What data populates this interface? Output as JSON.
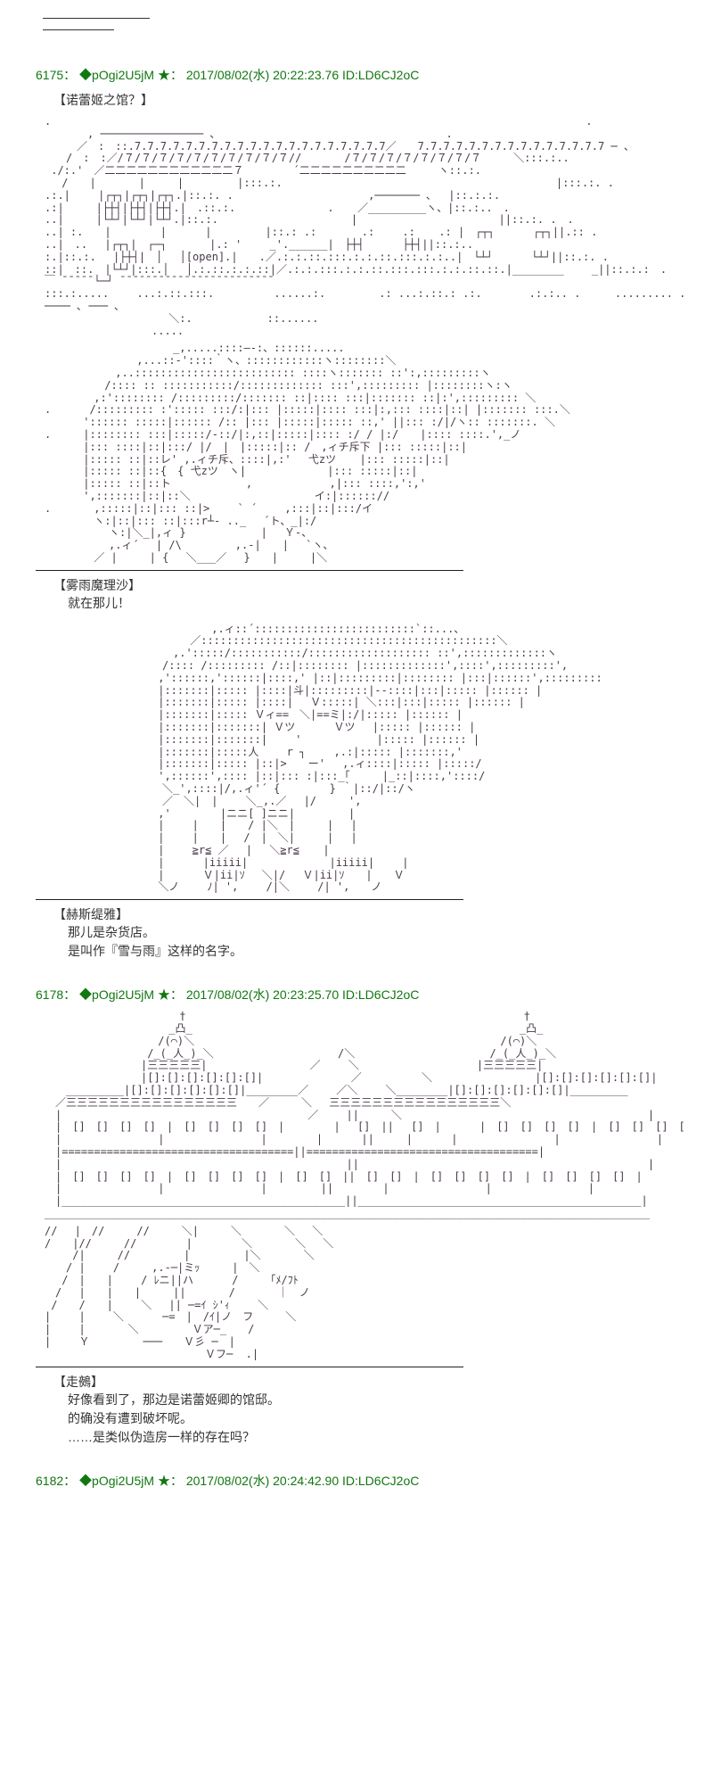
{
  "topbar": {},
  "posts": [
    {
      "num": "6175",
      "sep": "：",
      "trip": "◆pOgi2U5jM",
      "star": "★",
      "date": "2017/08/02(水) 20:22:23.76",
      "idlabel": "ID:LD6CJ2oC",
      "caption": "【诺蕾姬之馆？】",
      "aa_house": ".　　　　　　　　　　　　　　　　　　　　　　　　　　　　　　　　　　　　　　　　　　　　　　　　　　.\n　　　　, ──────────────── 、　　　　　　　　　　　　　　　　　　　　　 .\n　　　／　:　::.7.7.7.7.7.7.7.7.7.7.7.7.7.7.7.7.7.7.7.7／　　7.7.7.7.7.7.7.7.7.7.7.7.7.7.7 ─ 、\n　　/　:　:／/７/７/７/７/７/７/７/７/７/７//　　　　/７/７/７/７/７/７/７/７　　　＼:::.:..\n ./:.'　／二二二二二二二二二二二二７　　　　 ´二二二二二二二二二二　　　ヽ::.:.\n　 /　　|　　　　|　　　|　　　　　|:::.:.　　　　　　　　　　　　 　　　　　　　　　　　　　|:::.:. .\n.:.|　　 |┌┬┐|┌┬┐|┌┬┐.|::.:. .　　　　　　　　　 　　　,─────── ､　 |::.:.:.\n.:|　　　|├┼┤|├┼┤|├┼┤.|　.::.:.　　　　　　　　 . 　 ／_________ヽ、|::.:..　.\n..|　　　|└┴┘|└┴┘|└┴┘.|::.:. 　　　　　　　　 　 　 |　　　　　　　　　　 　　 ||::.:. .　.\n..| :.　　|　　　　 |　　　 |　　　　　|::.: .:　　 　 .:　　 .: 　 .: |　┌┬┐　　　 ┌┬┐||.:: .\n..|　..　 |┌┬┐|　┌─┐　　　　|.: '　　 _'.______|　├┼┤　　　 ├┼┤||::.:..\n:.|::.:.　 |├┼┤|　│　 │[open].|　　.／.:.:.::.:::.:.:.::.:::.:.:..|　└┴┘　　　 └┴┘||::.:. .\n::|　::.　|└┴┘|:::.│　 │.:.::.:.:.::|／.:.:.:::.:.:.::.:::.:::.:.:.::.::.|________　　 _||::.:.:　.\n￣ ̄ ̄ ̄ ̄ ̄ └─┘ ̄ ̄ ̄ ̄ ̄ ̄ ̄ ̄ ̄ ̄ ̄ ̄ ̄ ̄ ̄ ̄ ̄ ̄ ̄ ̄ ̄ ̄ ̄ ̄\n:::.:.....　　 ...:.::.:::.　　　　　 ......:.　　　　　.: ...:.::.: .:.　　    .:.:.. .　 　 ......... . .　......:.::.　...\n──── ､ ─── ､\n　　　　　　　　　　　 ＼:.　　　　　　　::......\n　　　　　　　　　　.....",
      "aa_marisa": "　　　　　　　　　　　　_,.....::::―-:、::::::.....\n　　　　　　　　 ,...::‐'::::｀ヽ、::::::::::::ヽ::::::::＼\n　　　　　　 ,..::::::::::::::::::::::::: ::::ヽ::::::: ::':,:::::::::ヽ\n　　　　　 /:::: :: :::::::::::/::::::::::::: :::',::::::::: |::::::::ヽ:ヽ\n　　　　 ,:':::::::: /:::::::::/::::::: ::|:::: :::|::::::: ::|:',::::::::: ＼\n.　　　 /::::::::: :'::::: :::/:|::: |:::::|:::: :::|:,::: ::::|::| |::::::: :::.＼\n　　　 ':::::: :::::|:::::: /:: |::: |:::::|::::: ::,' ||::: :/|/ヽ:: :::::::. ＼\n.　　　|:::::::: :::|:::::/-::/|:,::|:::::|:::: :/ / |:/　　|:::: ::::.',_ノ\n　 　　|::: ::::|::|:::/ |/　|　|:::::|:: /　,ィチ斥下 |::: :::::|::|\n　 　　|::::: ::|::レ' ,.ィチ斥、::::|,:'　 弋zツ 　 |::: :::::|::|\n　 　　|::::: ::|::{　{ 弋zツ　ヽ|　　　　　　　 |::: :::::|::|\n　 　　|::::: ::|::ト　　　　　　　,　　　　　 　 ,|::: ::::,':,'\n　 　　',:::::::|::|::＼　　　　　　　　　　　 イ:|:::::://\n.　　　　,:::::|::|::: ::|>　　 ` ´　　 ,:::|::|:::/イ\n　　　　 ヽ:|::|::: ::|:::r┴- .._　 ´ト、_|:/\n　　　　　　ヽ:|＼_|,ィ }　　　　　　　|　 Ｙ-、\n　　　　　　,.ィ´　 | /\\　　　　　,.-|　　|　 `ヽ、\n　　　　 ／ |　　　| { 　＼___／　 }　　|　　　|＼",
      "speaker1": "【雾雨魔理沙】",
      "line1": "就在那儿！",
      "aa_hestia": "　　　　　　　　　　　　　　　 ,.ィ::´:::::::::::::::::::::::::`::...、\n　　　　　　　　　　　　　 ／::::::::::::::::::::::::::::::::::::::::::::::＼\n　　　　　　　　　　　　,.':::::/:::::::::::/::::::::::::::::::: ::',:::::::::::::ヽ\n　　　　　　　　　　　/:::: /::::::::: /::|:::::::: |:::::::::::::',::::',:::::::::',\n　　　　　　　　　　 ,'::::::,'::::::|::::,' |::|:::::::::|:::::::: |:::|::::::',:::::::::\n　　　　　　　　　　 |:::::::|::::: |::::|斗|:::::::::|‐-::::|:::|::::: |:::::: |\n　　　　　　　　　　 |:::::::|::::: |::::|　 Ｖ:::::| ＼:::|:::|::::: |:::::: |\n　　　　　　　　　　 |:::::::|::::: Ｖィ==　＼|==ミ|:/|::::: |:::::: |\n　　　　　　　　　　 |:::::::|:::::::| Ｖツ　　　 Ｖツ　 |::::: |:::::: |\n　　　　　　　　　　 |:::::::|:::::::|　　 '　　　　　　　|::::: |:::::: |\n　　　　　　　　　　 |:::::::|:::::人　　 r ┐　　 ,.:|::::: |:::::::,'\n　　　　　　　　　　 |:::::::|::::: |::|>　　ー'　 ,.ィ::::|::::: |:::::/\n　　　　　　　　　　 ',::::::',:::: |::|::: :|:::_｢　　　|_::|::::,'::::/\n　　　　　　　　　　　＼_',::::|/,.ィ'´ {　　　　 } ｀|::/|::/ヽ\n　　　　　　　　　　　／　＼|　|　　 ＼_,.／　 |/　　　',\n　　　　　　　　　　 ,'　　　　 |ニニ[ ]ニニ|　　　　　|\n　　　　　　　　　　 |　　 |　　|　　/ |＼　|　　　|　 |\n　　　　　　　　　　 |　　 |　　|　 /　|　＼|　　　|　 |\n　　　　　　　　　　 |　　 ≧r≦ ／　 |　 ＼≧r≦　  |\n　　　　　　　　　　 |　　　 |iiiii|　　　　　　　 |iiiii|　　 |\n　　　　　　　　　　 |　　　 Ｖ|ii|ｿ　 ＼|/　 Ｖ|ii|ｿ　　|　　Ｖ\n　　　　　　　　　　 ＼ノ　　 ﾉ| ',　　 /|＼　　 /| ',　　ノ",
      "speaker2": "【赫斯缇雅】",
      "line2a": "那儿是杂货店。",
      "line2b": "是叫作『雪与雨』这样的名字。"
    },
    {
      "num": "6178",
      "sep": "：",
      "trip": "◆pOgi2U5jM",
      "star": "★",
      "date": "2017/08/02(水) 20:23:25.70",
      "idlabel": "ID:LD6CJ2oC",
      "aa_mansion": "　　　　　　　　　　　　 †　　　　　　　　　　　　　　　　　　　　　　　　　　　　　　　 †\n　　　　　　　　　　　 _凸_　　　　　　　　　　　　　　　　　　　　　　　　　　　　　　 _凸_\n　　　　　　　　　　 /(⌒)＼　　　　　　　　　　　　　　　　　　　　　　　　　　　　 /(⌒)＼\n　　　　　　　　　 /_(_人_)_＼　　　　　　　　　　 　/＼　　　　　　　　　　　　 /_(_人_)_＼\n　　　　　　　　　|三三三三三|　　　　　　　　　 ／　 　＼　　　　　　　　　　　|三三三三三|\n　　　　　　　　　|[]:[]:[]:[]:[]:[]|　 　　　　　　 ／　　　　　 ＼　　　　　　　　　 |[]:[]:[]:[]:[]:[]|\n　　_________|[]:[]:[]:[]:[]:[]|________／　　 ／＼　　 ＼________|[]:[]:[]:[]:[]:[]|_________\n　／三三三三三三三三三三三三三三三三　　／　　　＼　 三三三三三三三三三三三三三三三三＼\n　|　　　　　　　　　　　　　　　　　　　　　　　／　　 ||　　　＼　　　　　　　　　　　　　　　　　　　　　　　|\n　|　[]　[]　[]　[]　|　[]　[]　[]　[]　|　　　　 |　 []　||　 []　|　　　 |　[]　[]　[]　[]　|　[]　[]　[]　[]　|\n　|　　　　　　　　　|　　　　　　　　　|　　　　 |　　　 ||　　　|　　　 |　　　　　　　　　|　　　　　　　　　|\n　|====================================||====================================|\n　|　　　　　　　　　　　　　　　　　　　　　　　　　　 ||　　　　　　　　　　　　　　　　　　　　　　　　　　　|\n　|　[]　[]　[]　[]　|　[]　[]　[]　[]　|　[]　[]　||　[]　[]　|　[]　[]　[]　[]　|　[]　[]　[]　[]　|\n　|　　　　　　　　　|　　　　　　　　　|　　　　　||　　　　 |　　　　　　　　　|　　　　　　　　　|\n　|____________________________________________||____________________________________________|\n______________________________________________________________________________________________",
      "aa_monster": "// 　|　//　　　//　　　＼|　　　＼　　　　＼　 ＼\n/　　|//　　　//　　　　 |　　　　 ＼　　　　＼　 ＼\n　　 /|　　　//　　　　　|　　　　　|＼　　　　＼\n　　/ |　　 /　　　,.-─|ミｯ　　　|　＼\n　 /　|　　|　　 / ﾚニ||ハ　　　 /　　　｢ﾒ/ﾌﾄ\n　/　 |　　|　　|　　　||　　　　/　　　　｜　ノ\n /　　/　　|　　 ＼　 || ─=ｲ ｼ'ｨ　　 ＼\n|　　 |　　 ＼　　　 ─=　|　/ｲ|ノ　フ　　　＼\n|　　 |　　　　＼　　　　　Ｖア─_　　/\n|　　 Ｙ　　　　　───　　Ｖ彡 ─　|\n　　　　　　　　　　　　　　　Ｖフ─  .|",
      "speaker3": "【走鵺】",
      "line3a": "好像看到了，那边是诺蕾姬卿的馆邸。",
      "line3b": "的确没有遭到破坏呢。",
      "line3c": "……是类似伪造房一样的存在吗？"
    },
    {
      "num": "6182",
      "sep": "：",
      "trip": "◆pOgi2U5jM",
      "star": "★",
      "date": "2017/08/02(水) 20:24:42.90",
      "idlabel": "ID:LD6CJ2oC"
    }
  ]
}
